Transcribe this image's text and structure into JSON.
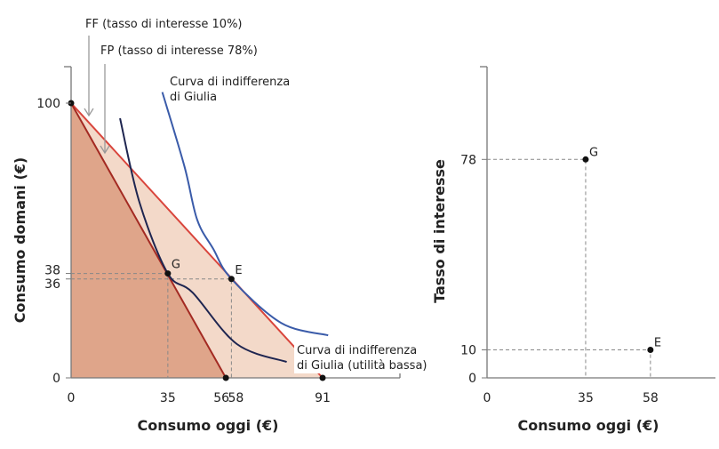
{
  "chart_data": [
    {
      "type": "line",
      "xlabel": "Consumo oggi (€)",
      "ylabel": "Consumo domani (€)",
      "xticks": [
        0,
        35,
        56,
        58,
        91
      ],
      "yticks": [
        0,
        36,
        38,
        100
      ],
      "xlim": [
        0,
        118
      ],
      "ylim": [
        0,
        114
      ],
      "series": [
        {
          "name": "FF (tasso di interesse 10%)",
          "color": "#d9453c",
          "points": [
            [
              0,
              100
            ],
            [
              91,
              0
            ]
          ]
        },
        {
          "name": "FP (tasso di interesse 78%)",
          "color": "#a32a22",
          "points": [
            [
              0,
              100
            ],
            [
              56,
              0
            ]
          ]
        },
        {
          "name": "Curva di indifferenza di Giulia",
          "color": "#3a5ba9",
          "points": [
            [
              33,
              104
            ],
            [
              41,
              77
            ],
            [
              45.6,
              57.6
            ],
            [
              51.4,
              47
            ],
            [
              58,
              36
            ],
            [
              76,
              20
            ],
            [
              93,
              15.5
            ]
          ]
        },
        {
          "name": "Curva di indifferenza di Giulia (utilità bassa)",
          "color": "#1e2550",
          "points": [
            [
              17.7,
              94.5
            ],
            [
              24.7,
              64
            ],
            [
              35,
              38
            ],
            [
              44,
              31
            ],
            [
              60,
              12.3
            ],
            [
              78,
              5.8
            ]
          ]
        }
      ],
      "points": [
        {
          "label": "G",
          "x": 35,
          "y": 38
        },
        {
          "label": "E",
          "x": 58,
          "y": 36
        }
      ],
      "annotations": {
        "ff": "FF (tasso di interesse 10%)",
        "fp": "FP (tasso di interesse 78%)",
        "ic_high_1": "Curva di indifferenza",
        "ic_high_2": "di Giulia",
        "ic_low_1": "Curva di indifferenza",
        "ic_low_2": "di Giulia (utilità bassa)"
      },
      "fill_colors": {
        "feasible_ff": "#f3d9c9",
        "feasible_fp": "#dfa58a"
      }
    },
    {
      "type": "scatter",
      "xlabel": "Consumo oggi (€)",
      "ylabel": "Tasso di interesse",
      "xticks": [
        0,
        35,
        58
      ],
      "yticks": [
        0,
        10,
        78
      ],
      "xlim": [
        0,
        81
      ],
      "ylim": [
        0,
        110
      ],
      "points": [
        {
          "label": "G",
          "x": 35,
          "y": 78
        },
        {
          "label": "E",
          "x": 58,
          "y": 10
        }
      ]
    }
  ]
}
